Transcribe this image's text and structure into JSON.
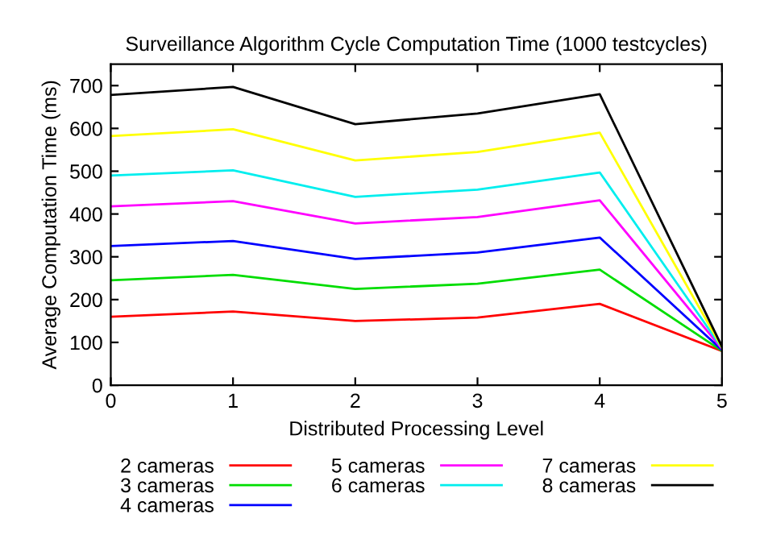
{
  "chart_data": {
    "type": "line",
    "title": "Surveillance Algorithm Cycle Computation Time (1000 testcycles)",
    "xlabel": "Distributed Processing Level",
    "ylabel": "Average Computation Time (ms)",
    "x": [
      0,
      1,
      2,
      3,
      4,
      5
    ],
    "xlim": [
      0,
      5
    ],
    "xticks": [
      0,
      1,
      2,
      3,
      4,
      5
    ],
    "ylim": [
      0,
      750
    ],
    "yticks": [
      0,
      100,
      200,
      300,
      400,
      500,
      600,
      700
    ],
    "grid": false,
    "legend": "bottom",
    "series": [
      {
        "name": "2 cameras",
        "color": "#ff0000",
        "values": [
          160,
          172,
          150,
          158,
          190,
          80
        ]
      },
      {
        "name": "3 cameras",
        "color": "#00dd00",
        "values": [
          245,
          258,
          225,
          237,
          270,
          80
        ]
      },
      {
        "name": "4 cameras",
        "color": "#0000ff",
        "values": [
          325,
          337,
          295,
          310,
          345,
          82
        ]
      },
      {
        "name": "5 cameras",
        "color": "#ff00ff",
        "values": [
          418,
          430,
          378,
          393,
          432,
          85
        ]
      },
      {
        "name": "6 cameras",
        "color": "#00eeee",
        "values": [
          490,
          502,
          440,
          457,
          497,
          87
        ]
      },
      {
        "name": "7 cameras",
        "color": "#ffff00",
        "values": [
          582,
          598,
          525,
          545,
          590,
          88
        ]
      },
      {
        "name": "8 cameras",
        "color": "#000000",
        "values": [
          678,
          697,
          610,
          635,
          680,
          90
        ]
      }
    ]
  }
}
